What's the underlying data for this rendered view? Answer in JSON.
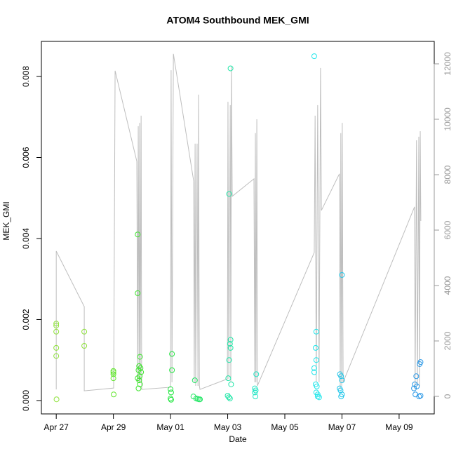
{
  "chart_data": {
    "type": "scatter",
    "title": "ATOM4 Southbound MEK_GMI",
    "x_label": "Date",
    "y_label": "MEK_GMI",
    "xlim": [
      -0.52,
      13.23
    ],
    "xticks": [
      {
        "value": 0,
        "label": "Apr 27"
      },
      {
        "value": 2,
        "label": "Apr 29"
      },
      {
        "value": 4,
        "label": "May 01"
      },
      {
        "value": 6,
        "label": "May 03"
      },
      {
        "value": 8,
        "label": "May 05"
      },
      {
        "value": 10,
        "label": "May 07"
      },
      {
        "value": 12,
        "label": "May 09"
      }
    ],
    "ylim": [
      -0.00033,
      0.008866
    ],
    "yticks": [
      {
        "value": 0,
        "label": "0.000"
      },
      {
        "value": 0.002,
        "label": "0.002"
      },
      {
        "value": 0.004,
        "label": "0.004"
      },
      {
        "value": 0.006,
        "label": "0.006"
      },
      {
        "value": 0.008,
        "label": "0.008"
      }
    ],
    "y2lim": [
      -633,
      12810
    ],
    "y2ticks": [
      0,
      2000,
      4000,
      6000,
      8000,
      10000,
      12000
    ],
    "series": [
      {
        "type": "line",
        "axis": "y2",
        "color": "#bebebe",
        "x": [
          0,
          0,
          0.98,
          0.98,
          2.01,
          2.06,
          2.82,
          2.85,
          2.87,
          2.9,
          2.92,
          2.94,
          2.97,
          2.99,
          4.0,
          4.02,
          4.05,
          4.1,
          4.81,
          4.83,
          4.86,
          4.88,
          4.93,
          4.96,
          4.98,
          5.01,
          5.03,
          5.99,
          6.01,
          6.04,
          6.09,
          6.11,
          6.13,
          6.16,
          6.92,
          6.95,
          6.97,
          6.99,
          7.02,
          7.04,
          9.03,
          9.06,
          9.1,
          9.15,
          9.2,
          9.25,
          9.28,
          9.91,
          9.94,
          9.96,
          9.99,
          10.01,
          10.04,
          12.54,
          12.56,
          12.61,
          12.64,
          12.69,
          12.71,
          12.74,
          12.76
        ],
        "values": [
          250,
          5240,
          3240,
          200,
          300,
          11750,
          8480,
          510,
          9750,
          510,
          9870,
          510,
          10130,
          250,
          330,
          11770,
          510,
          12360,
          7770,
          510,
          9120,
          380,
          9120,
          380,
          10890,
          380,
          250,
          630,
          10630,
          630,
          10510,
          510,
          11900,
          7220,
          7850,
          510,
          9500,
          510,
          10000,
          380,
          5190,
          10130,
          510,
          10510,
          510,
          11850,
          6710,
          8030,
          250,
          9500,
          380,
          9870,
          510,
          6840,
          250,
          9240,
          380,
          9370,
          380,
          9570,
          6330
        ]
      },
      {
        "color": "#8ee23a",
        "x": [
          0,
          0,
          0,
          0,
          0,
          0.01,
          0.98,
          0.98
        ],
        "values": [
          0.0019,
          0.00185,
          0.0017,
          0.0013,
          0.0011,
          3e-05,
          0.0017,
          0.00135
        ]
      },
      {
        "color": "#62e62e",
        "x": [
          2.0,
          2.0,
          2.0,
          2.0,
          2.01
        ],
        "values": [
          0.00073,
          0.0007,
          0.00065,
          0.00055,
          0.00015
        ]
      },
      {
        "color": "#3ee62e",
        "x": [
          2.85,
          2.85,
          2.93,
          2.9,
          2.95,
          2.88,
          2.97,
          2.92,
          2.85,
          2.9,
          2.93,
          2.88
        ],
        "values": [
          0.0041,
          0.00265,
          0.00108,
          0.00085,
          0.0008,
          0.00075,
          0.0007,
          0.0006,
          0.00055,
          0.0005,
          0.0004,
          0.0003
        ]
      },
      {
        "color": "#22e640",
        "x": [
          4.05,
          4.05,
          4.0,
          4.02,
          4.0,
          4.02
        ],
        "values": [
          0.00115,
          0.00075,
          0.00028,
          0.0002,
          5e-05,
          2e-05
        ]
      },
      {
        "color": "#22e664",
        "x": [
          4.85,
          4.8,
          4.9,
          4.95,
          5.0,
          5.03
        ],
        "values": [
          0.0005,
          0.0001,
          5e-05,
          4e-05,
          3e-05,
          3e-05
        ]
      },
      {
        "color": "#22e6a8",
        "x": [
          6.1,
          6.05,
          6.1,
          6.08,
          6.1,
          6.05,
          6.02,
          6.12,
          6.0,
          6.04,
          6.08
        ],
        "values": [
          0.0082,
          0.0051,
          0.0015,
          0.0014,
          0.0013,
          0.001,
          0.00055,
          0.0004,
          0.00012,
          8e-05,
          5e-05
        ]
      },
      {
        "color": "#22e6c4",
        "x": [
          7.0,
          6.95,
          6.98,
          6.95,
          6.97
        ],
        "values": [
          0.00065,
          0.0003,
          0.00025,
          0.0002,
          0.0001
        ]
      },
      {
        "color": "#22e6ea",
        "x": [
          9.03,
          9.1,
          9.08,
          9.1,
          9.03,
          9.03,
          9.08,
          9.12,
          9.1,
          9.15,
          9.15,
          9.2
        ],
        "values": [
          0.0085,
          0.0017,
          0.0013,
          0.001,
          0.0008,
          0.0007,
          0.0004,
          0.00035,
          0.0002,
          0.00015,
          0.0001,
          8e-05
        ]
      },
      {
        "color": "#22c6ea",
        "x": [
          10.0,
          9.93,
          9.97,
          10.0,
          9.92,
          9.95,
          10.0,
          9.97
        ],
        "values": [
          0.0031,
          0.00065,
          0.0006,
          0.0005,
          0.0003,
          0.00025,
          0.00015,
          0.0001
        ]
      },
      {
        "color": "#2a98e6",
        "x": [
          12.75,
          12.72,
          12.6,
          12.55,
          12.62,
          12.52,
          12.57,
          12.75,
          12.7
        ],
        "values": [
          0.00095,
          0.0009,
          0.0006,
          0.0004,
          0.00035,
          0.0003,
          0.00015,
          0.00012,
          0.0001
        ]
      }
    ]
  }
}
